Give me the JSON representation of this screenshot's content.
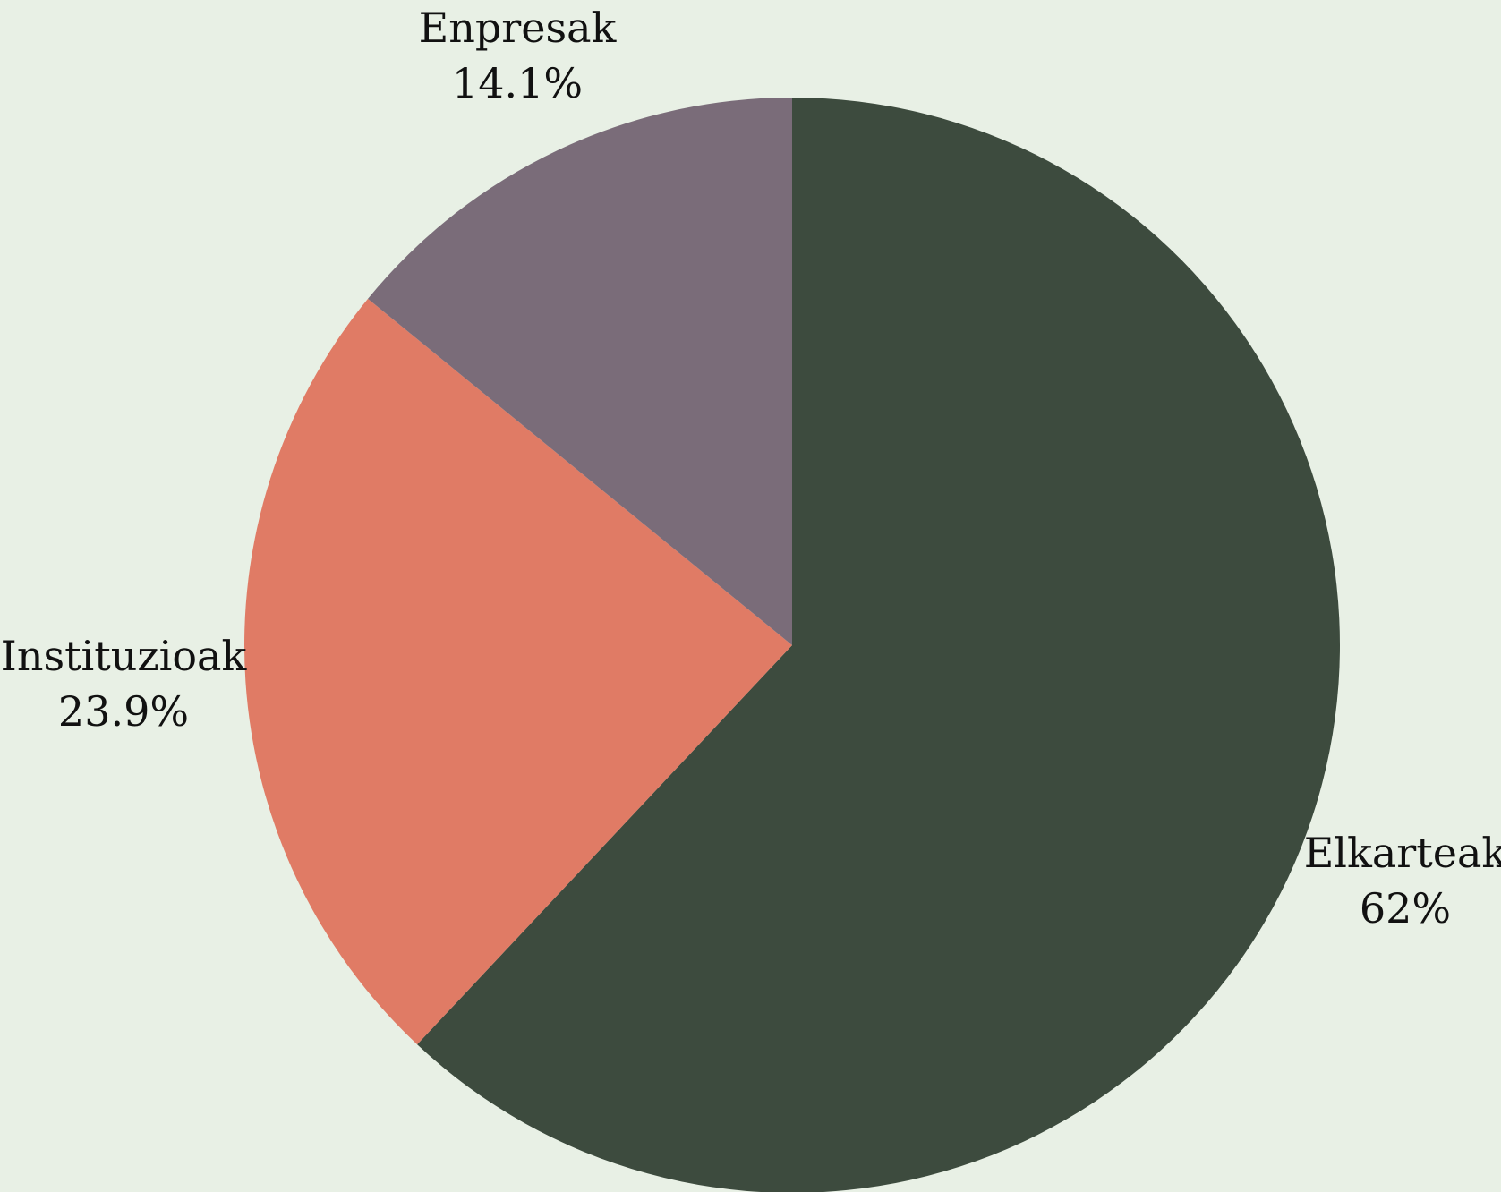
{
  "chart_data": {
    "type": "pie",
    "slices": [
      {
        "label": "Elkarteak",
        "value": 62,
        "value_label": "62%",
        "color": "#3d4b3e"
      },
      {
        "label": "Instituzioak",
        "value": 23.9,
        "value_label": "23.9%",
        "color": "#e07b65"
      },
      {
        "label": "Enpresak",
        "value": 14.1,
        "value_label": "14.1%",
        "color": "#7a6c79"
      }
    ],
    "start": "12 o'clock",
    "direction": "clockwise",
    "background": "#e8f0e5",
    "legend": "none"
  }
}
